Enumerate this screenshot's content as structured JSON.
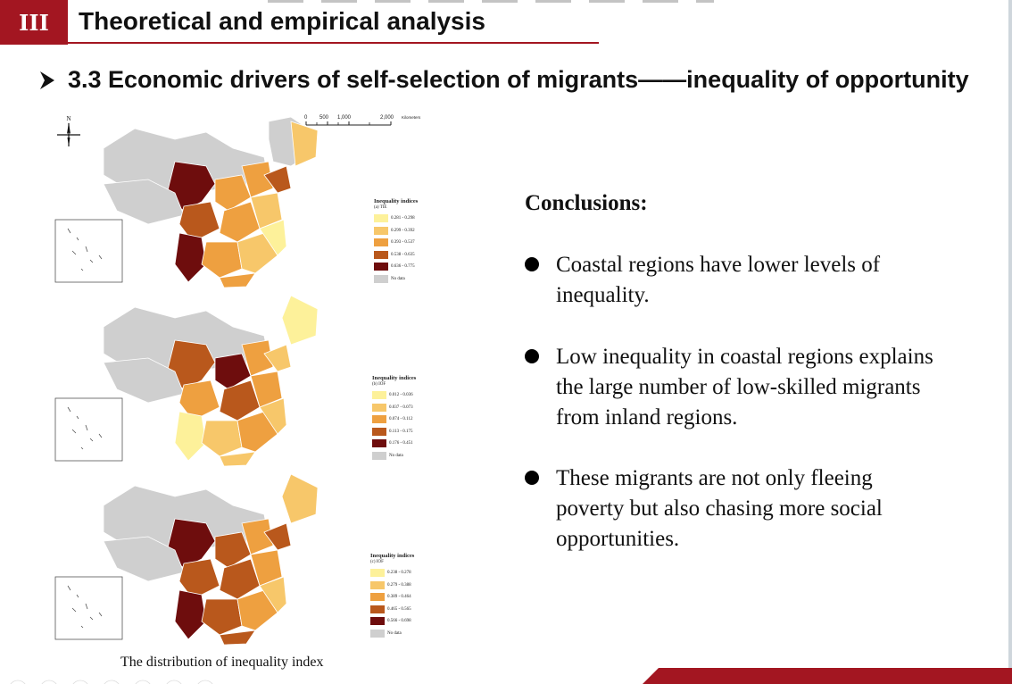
{
  "header": {
    "section_number": "III",
    "section_title": "Theoretical and empirical analysis"
  },
  "subtitle": "3.3 Economic drivers of self-selection of migrants——inequality of opportunity",
  "figure": {
    "caption": "The distribution of inequality index",
    "compass_label": "N",
    "scale_labels": [
      "0",
      "500",
      "1,000",
      "2,000",
      "Kilometers"
    ],
    "maps": [
      {
        "legend_title": "Inequality indices",
        "legend_sub": "(a) TIE",
        "classes": [
          {
            "label": "0.281 - 0.298",
            "color": "#fdf19a"
          },
          {
            "label": "0.299 - 0.392",
            "color": "#f7c76a"
          },
          {
            "label": "0.393 - 0.537",
            "color": "#eea040"
          },
          {
            "label": "0.538 - 0.635",
            "color": "#b9581c"
          },
          {
            "label": "0.636 - 0.775",
            "color": "#6e0d0d"
          },
          {
            "label": "No data",
            "color": "#cfcfcf"
          }
        ]
      },
      {
        "legend_title": "Inequality indices",
        "legend_sub": "(b) IOF",
        "classes": [
          {
            "label": "0.012 - 0.036",
            "color": "#fdf19a"
          },
          {
            "label": "0.037 - 0.073",
            "color": "#f7c76a"
          },
          {
            "label": "0.074 - 0.112",
            "color": "#eea040"
          },
          {
            "label": "0.113 - 0.175",
            "color": "#b9581c"
          },
          {
            "label": "0.176 - 0.451",
            "color": "#6e0d0d"
          },
          {
            "label": "No data",
            "color": "#cfcfcf"
          }
        ]
      },
      {
        "legend_title": "Inequality indices",
        "legend_sub": "(c) IOF",
        "classes": [
          {
            "label": "0.238 - 0.278",
            "color": "#fdf19a"
          },
          {
            "label": "0.279 - 0.388",
            "color": "#f7c76a"
          },
          {
            "label": "0.389 - 0.464",
            "color": "#eea040"
          },
          {
            "label": "0.465 - 0.565",
            "color": "#b9581c"
          },
          {
            "label": "0.566 - 0.698",
            "color": "#6e0d0d"
          },
          {
            "label": "No data",
            "color": "#cfcfcf"
          }
        ]
      }
    ]
  },
  "conclusions": {
    "heading": "Conclusions:",
    "bullets": [
      "Coastal regions have lower levels of inequality.",
      "Low inequality in coastal regions explains the large number of low-skilled migrants from inland regions.",
      "These migrants are not only fleeing poverty but also chasing more social opportunities."
    ]
  },
  "colors": {
    "accent": "#a31621",
    "no_data": "#cfcfcf"
  }
}
